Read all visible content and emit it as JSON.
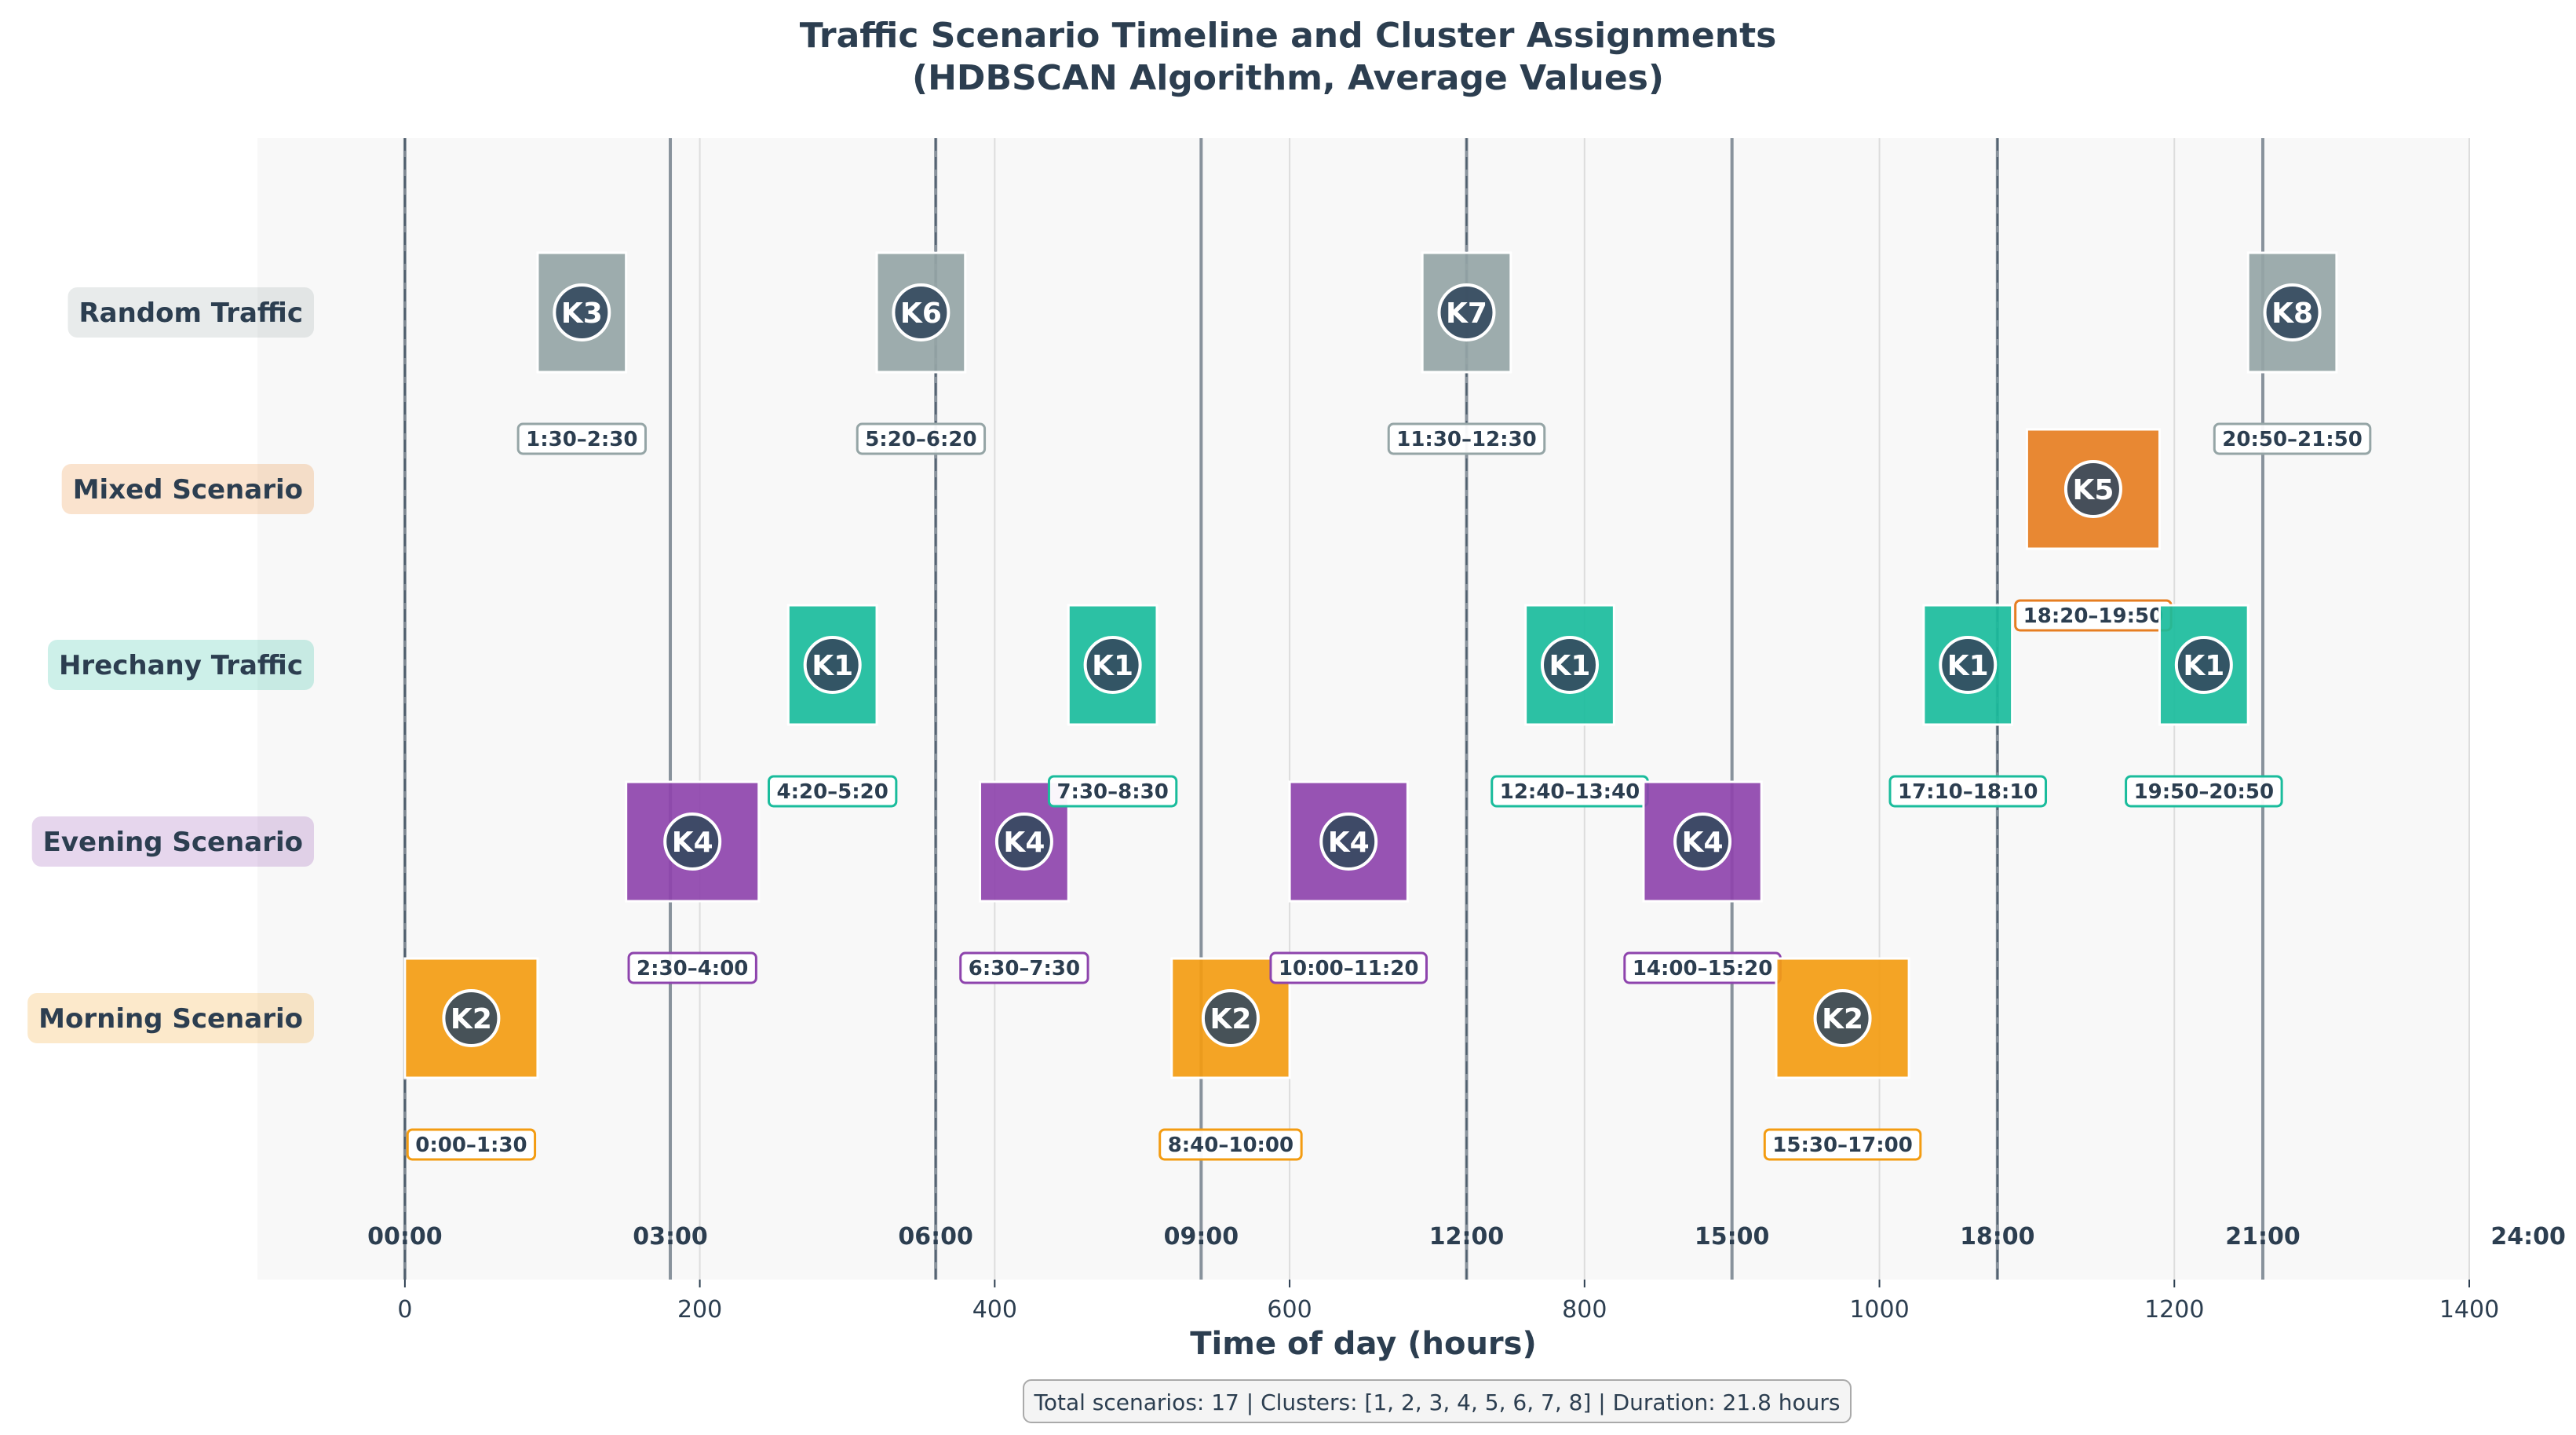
{
  "chart_data": {
    "type": "timeline",
    "title_lines": [
      "Traffic Scenario Timeline and Cluster Assignments",
      "(HDBSCAN Algorithm, Average Values)"
    ],
    "xlabel": "Time of day (hours)",
    "xlim": [
      -100,
      1400
    ],
    "x_ticks": [
      0,
      200,
      400,
      600,
      800,
      1000,
      1200,
      1400
    ],
    "x_tick_labels": [
      "0",
      "200",
      "400",
      "600",
      "800",
      "1000",
      "1200",
      "1400"
    ],
    "hour_markers": [
      0,
      180,
      360,
      540,
      720,
      900,
      1080,
      1260,
      1440
    ],
    "hour_labels": [
      "00:00",
      "03:00",
      "06:00",
      "09:00",
      "12:00",
      "15:00",
      "18:00",
      "21:00",
      "24:00"
    ],
    "dashed_hour_markers": [
      0,
      360,
      720,
      1080
    ],
    "rows": [
      {
        "name": "Random Traffic",
        "color": "#95a5a6"
      },
      {
        "name": "Mixed Scenario",
        "color": "#e67e22"
      },
      {
        "name": "Hrechany Traffic",
        "color": "#1abc9c"
      },
      {
        "name": "Evening Scenario",
        "color": "#8e44ad"
      },
      {
        "name": "Morning Scenario",
        "color": "#f39c12"
      }
    ],
    "scenarios": [
      {
        "row": "Morning Scenario",
        "start": 0,
        "end": 90,
        "cluster": "K2",
        "label": "0:00–1:30"
      },
      {
        "row": "Random Traffic",
        "start": 90,
        "end": 150,
        "cluster": "K3",
        "label": "1:30–2:30"
      },
      {
        "row": "Evening Scenario",
        "start": 150,
        "end": 240,
        "cluster": "K4",
        "label": "2:30–4:00"
      },
      {
        "row": "Hrechany Traffic",
        "start": 260,
        "end": 320,
        "cluster": "K1",
        "label": "4:20–5:20"
      },
      {
        "row": "Random Traffic",
        "start": 320,
        "end": 380,
        "cluster": "K6",
        "label": "5:20–6:20"
      },
      {
        "row": "Evening Scenario",
        "start": 390,
        "end": 450,
        "cluster": "K4",
        "label": "6:30–7:30"
      },
      {
        "row": "Hrechany Traffic",
        "start": 450,
        "end": 510,
        "cluster": "K1",
        "label": "7:30–8:30"
      },
      {
        "row": "Morning Scenario",
        "start": 520,
        "end": 600,
        "cluster": "K2",
        "label": "8:40–10:00"
      },
      {
        "row": "Evening Scenario",
        "start": 600,
        "end": 680,
        "cluster": "K4",
        "label": "10:00–11:20"
      },
      {
        "row": "Random Traffic",
        "start": 690,
        "end": 750,
        "cluster": "K7",
        "label": "11:30–12:30"
      },
      {
        "row": "Hrechany Traffic",
        "start": 760,
        "end": 820,
        "cluster": "K1",
        "label": "12:40–13:40"
      },
      {
        "row": "Evening Scenario",
        "start": 840,
        "end": 920,
        "cluster": "K4",
        "label": "14:00–15:20"
      },
      {
        "row": "Morning Scenario",
        "start": 930,
        "end": 1020,
        "cluster": "K2",
        "label": "15:30–17:00"
      },
      {
        "row": "Hrechany Traffic",
        "start": 1030,
        "end": 1090,
        "cluster": "K1",
        "label": "17:10–18:10"
      },
      {
        "row": "Mixed Scenario",
        "start": 1100,
        "end": 1190,
        "cluster": "K5",
        "label": "18:20–19:50"
      },
      {
        "row": "Hrechany Traffic",
        "start": 1190,
        "end": 1250,
        "cluster": "K1",
        "label": "19:50–20:50"
      },
      {
        "row": "Random Traffic",
        "start": 1250,
        "end": 1310,
        "cluster": "K8",
        "label": "20:50–21:50"
      }
    ],
    "footer": "Total scenarios: 17 | Clusters: [1, 2, 3, 4, 5, 6, 7, 8] | Duration: 21.8 hours",
    "grid": true
  }
}
